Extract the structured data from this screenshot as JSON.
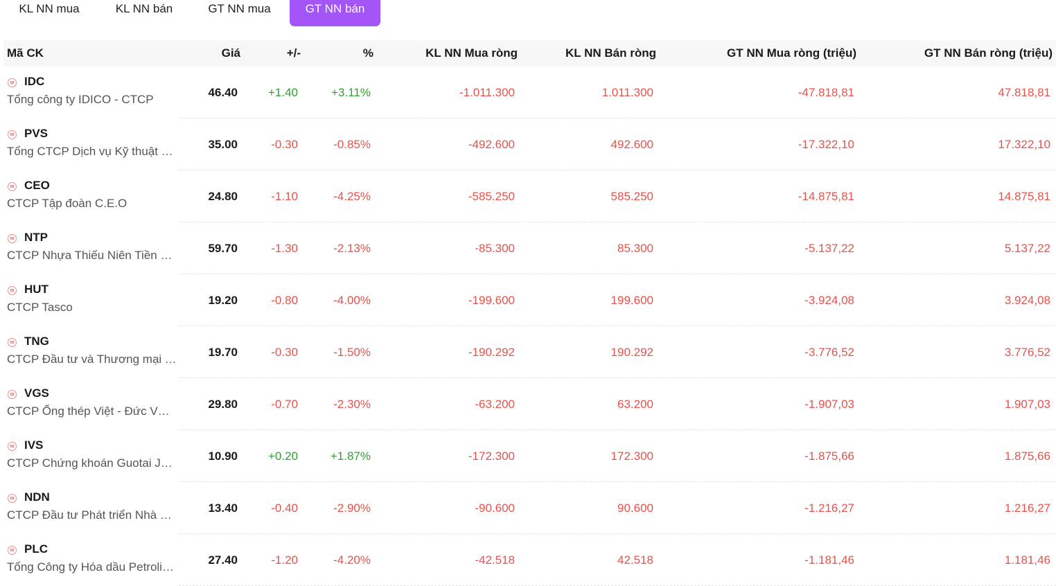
{
  "tabs": [
    {
      "label": "KL NN mua",
      "active": false
    },
    {
      "label": "KL NN bán",
      "active": false
    },
    {
      "label": "GT NN mua",
      "active": false
    },
    {
      "label": "GT NN bán",
      "active": true
    }
  ],
  "columns": {
    "symbol": "Mã CK",
    "price": "Giá",
    "change": "+/-",
    "percent": "%",
    "kl_buy": "KL NN Mua ròng",
    "kl_sell": "KL NN Bán ròng",
    "gt_buy": "GT NN Mua ròng (triệu)",
    "gt_sell": "GT NN Bán ròng (triệu)"
  },
  "colors": {
    "accent": "#a455f7",
    "up": "#2ea12e",
    "down": "#e5534b"
  },
  "rows": [
    {
      "symbol": "IDC",
      "name": "Tổng công ty IDICO - CTCP",
      "price": "46.40",
      "change": "+1.40",
      "percent": "+3.11%",
      "trend": "up",
      "kl_buy": "-1.011.300",
      "kl_sell": "1.011.300",
      "gt_buy": "-47.818,81",
      "gt_sell": "47.818,81"
    },
    {
      "symbol": "PVS",
      "name": "Tổng CTCP Dịch vụ Kỹ thuật Dầu khí Việt Nam",
      "price": "35.00",
      "change": "-0.30",
      "percent": "-0.85%",
      "trend": "down",
      "kl_buy": "-492.600",
      "kl_sell": "492.600",
      "gt_buy": "-17.322,10",
      "gt_sell": "17.322,10"
    },
    {
      "symbol": "CEO",
      "name": "CTCP Tập đoàn C.E.O",
      "price": "24.80",
      "change": "-1.10",
      "percent": "-4.25%",
      "trend": "down",
      "kl_buy": "-585.250",
      "kl_sell": "585.250",
      "gt_buy": "-14.875,81",
      "gt_sell": "14.875,81"
    },
    {
      "symbol": "NTP",
      "name": "CTCP Nhựa Thiếu Niên Tiền Phong",
      "price": "59.70",
      "change": "-1.30",
      "percent": "-2.13%",
      "trend": "down",
      "kl_buy": "-85.300",
      "kl_sell": "85.300",
      "gt_buy": "-5.137,22",
      "gt_sell": "5.137,22"
    },
    {
      "symbol": "HUT",
      "name": "CTCP Tasco",
      "price": "19.20",
      "change": "-0.80",
      "percent": "-4.00%",
      "trend": "down",
      "kl_buy": "-199.600",
      "kl_sell": "199.600",
      "gt_buy": "-3.924,08",
      "gt_sell": "3.924,08"
    },
    {
      "symbol": "TNG",
      "name": "CTCP Đầu tư và Thương mại TNG",
      "price": "19.70",
      "change": "-0.30",
      "percent": "-1.50%",
      "trend": "down",
      "kl_buy": "-190.292",
      "kl_sell": "190.292",
      "gt_buy": "-3.776,52",
      "gt_sell": "3.776,52"
    },
    {
      "symbol": "VGS",
      "name": "CTCP Ống thép Việt - Đức VG PIPE",
      "price": "29.80",
      "change": "-0.70",
      "percent": "-2.30%",
      "trend": "down",
      "kl_buy": "-63.200",
      "kl_sell": "63.200",
      "gt_buy": "-1.907,03",
      "gt_sell": "1.907,03"
    },
    {
      "symbol": "IVS",
      "name": "CTCP Chứng khoán Guotai Junan (Việt Nam)",
      "price": "10.90",
      "change": "+0.20",
      "percent": "+1.87%",
      "trend": "up",
      "kl_buy": "-172.300",
      "kl_sell": "172.300",
      "gt_buy": "-1.875,66",
      "gt_sell": "1.875,66"
    },
    {
      "symbol": "NDN",
      "name": "CTCP Đầu tư Phát triển Nhà Đà Nẵng",
      "price": "13.40",
      "change": "-0.40",
      "percent": "-2.90%",
      "trend": "down",
      "kl_buy": "-90.600",
      "kl_sell": "90.600",
      "gt_buy": "-1.216,27",
      "gt_sell": "1.216,27"
    },
    {
      "symbol": "PLC",
      "name": "Tổng Công ty Hóa dầu Petrolimex - CTCP",
      "price": "27.40",
      "change": "-1.20",
      "percent": "-4.20%",
      "trend": "down",
      "kl_buy": "-42.518",
      "kl_sell": "42.518",
      "gt_buy": "-1.181,46",
      "gt_sell": "1.181,46"
    }
  ]
}
